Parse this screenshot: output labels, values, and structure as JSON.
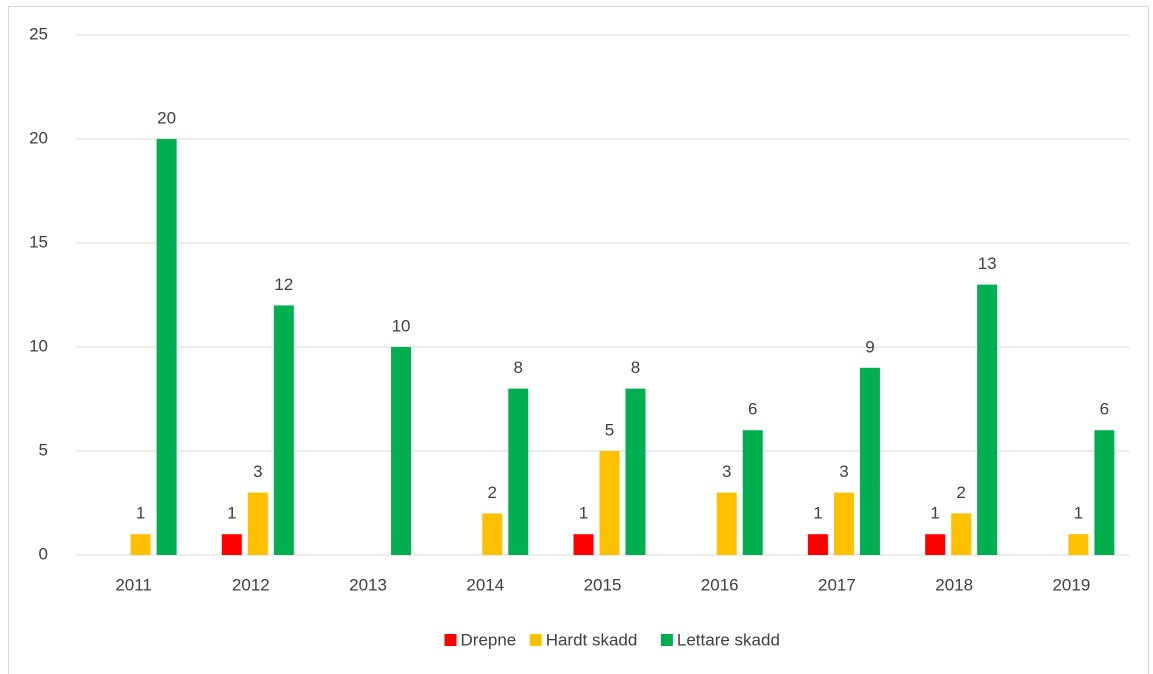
{
  "chart_data": {
    "type": "bar",
    "categories": [
      "2011",
      "2012",
      "2013",
      "2014",
      "2015",
      "2016",
      "2017",
      "2018",
      "2019"
    ],
    "series": [
      {
        "name": "Drepne",
        "color": "#ff0000",
        "values": [
          null,
          1,
          null,
          null,
          1,
          null,
          1,
          1,
          null
        ]
      },
      {
        "name": "Hardt skadd",
        "color": "#ffc000",
        "values": [
          1,
          3,
          null,
          2,
          5,
          3,
          3,
          2,
          1
        ]
      },
      {
        "name": "Lettare skadd",
        "color": "#00b050",
        "values": [
          20,
          12,
          10,
          8,
          8,
          6,
          9,
          13,
          6
        ]
      }
    ],
    "ylim": [
      0,
      25
    ],
    "yticks": [
      0,
      5,
      10,
      15,
      20,
      25
    ],
    "grid": true,
    "legend": "bottom"
  }
}
